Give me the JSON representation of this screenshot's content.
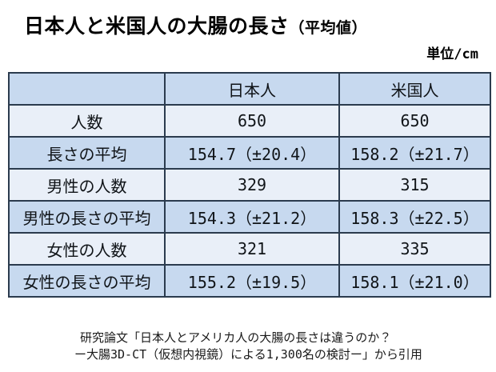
{
  "title": {
    "main": "日本人と米国人の大腸の長さ",
    "suffix": "（平均値）"
  },
  "unit_label": "単位/cm",
  "table": {
    "columns": [
      "",
      "日本人",
      "米国人"
    ],
    "rows": [
      {
        "label": "人数",
        "japanese": "650",
        "american": "650"
      },
      {
        "label": "長さの平均",
        "japanese": "154.7（±20.4）",
        "american": "158.2（±21.7）"
      },
      {
        "label": "男性の人数",
        "japanese": "329",
        "american": "315"
      },
      {
        "label": "男性の長さの平均",
        "japanese": "154.3（±21.2）",
        "american": "158.3（±22.5）"
      },
      {
        "label": "女性の人数",
        "japanese": "321",
        "american": "335"
      },
      {
        "label": "女性の長さの平均",
        "japanese": "155.2（±19.5）",
        "american": "158.1（±21.0）"
      }
    ]
  },
  "footer": {
    "line1": "研究論文「日本人とアメリカ人の大腸の長さは違うのか？",
    "line2": "ー大腸3D-CT（仮想内視鏡）による1,300名の検討ー」から引用"
  },
  "colors": {
    "row_dark": "#c7d9ef",
    "row_light": "#e9eff8",
    "border": "#2b3b4e",
    "text": "#111111",
    "background": "#ffffff"
  },
  "chart_data": {
    "type": "table",
    "title": "日本人と米国人の大腸の長さ（平均値）",
    "unit": "cm",
    "columns": [
      "",
      "日本人",
      "米国人"
    ],
    "rows": [
      [
        "人数",
        "650",
        "650"
      ],
      [
        "長さの平均",
        "154.7（±20.4）",
        "158.2（±21.7）"
      ],
      [
        "男性の人数",
        "329",
        "315"
      ],
      [
        "男性の長さの平均",
        "154.3（±21.2）",
        "158.3（±22.5）"
      ],
      [
        "女性の人数",
        "321",
        "335"
      ],
      [
        "女性の長さの平均",
        "155.2（±19.5）",
        "158.1（±21.0）"
      ]
    ],
    "values": {
      "japanese": {
        "n": 650,
        "mean": 154.7,
        "sd": 20.4,
        "male_n": 329,
        "male_mean": 154.3,
        "male_sd": 21.2,
        "female_n": 321,
        "female_mean": 155.2,
        "female_sd": 19.5
      },
      "american": {
        "n": 650,
        "mean": 158.2,
        "sd": 21.7,
        "male_n": 315,
        "male_mean": 158.3,
        "male_sd": 22.5,
        "female_n": 335,
        "female_mean": 158.1,
        "female_sd": 21.0
      }
    },
    "source_note": "研究論文「日本人とアメリカ人の大腸の長さは違うのか？ ー大腸3D-CT（仮想内視鏡）による1,300名の検討ー」から引用"
  }
}
